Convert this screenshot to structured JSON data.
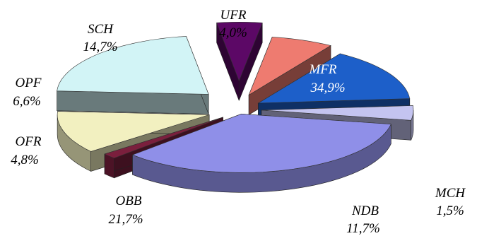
{
  "chart_data": {
    "type": "pie",
    "style": "3d-exploded",
    "labels": [
      "MFR",
      "MCH",
      "NDB",
      "OBB",
      "OFR",
      "OPF",
      "SCH",
      "UFR"
    ],
    "values": [
      34.9,
      1.5,
      11.7,
      21.7,
      4.8,
      6.6,
      14.7,
      4.0
    ],
    "value_labels": [
      "34,9%",
      "1,5%",
      "11,7%",
      "21,7%",
      "4,8%",
      "6,6%",
      "14,7%",
      "4,0%"
    ],
    "colors": [
      "#8f8fe8",
      "#7a1f3d",
      "#f2f0c0",
      "#d2f4f6",
      "#5c0866",
      "#ee7b70",
      "#1d5fc9",
      "#c4c4f0"
    ],
    "title": "",
    "legend": "none"
  }
}
